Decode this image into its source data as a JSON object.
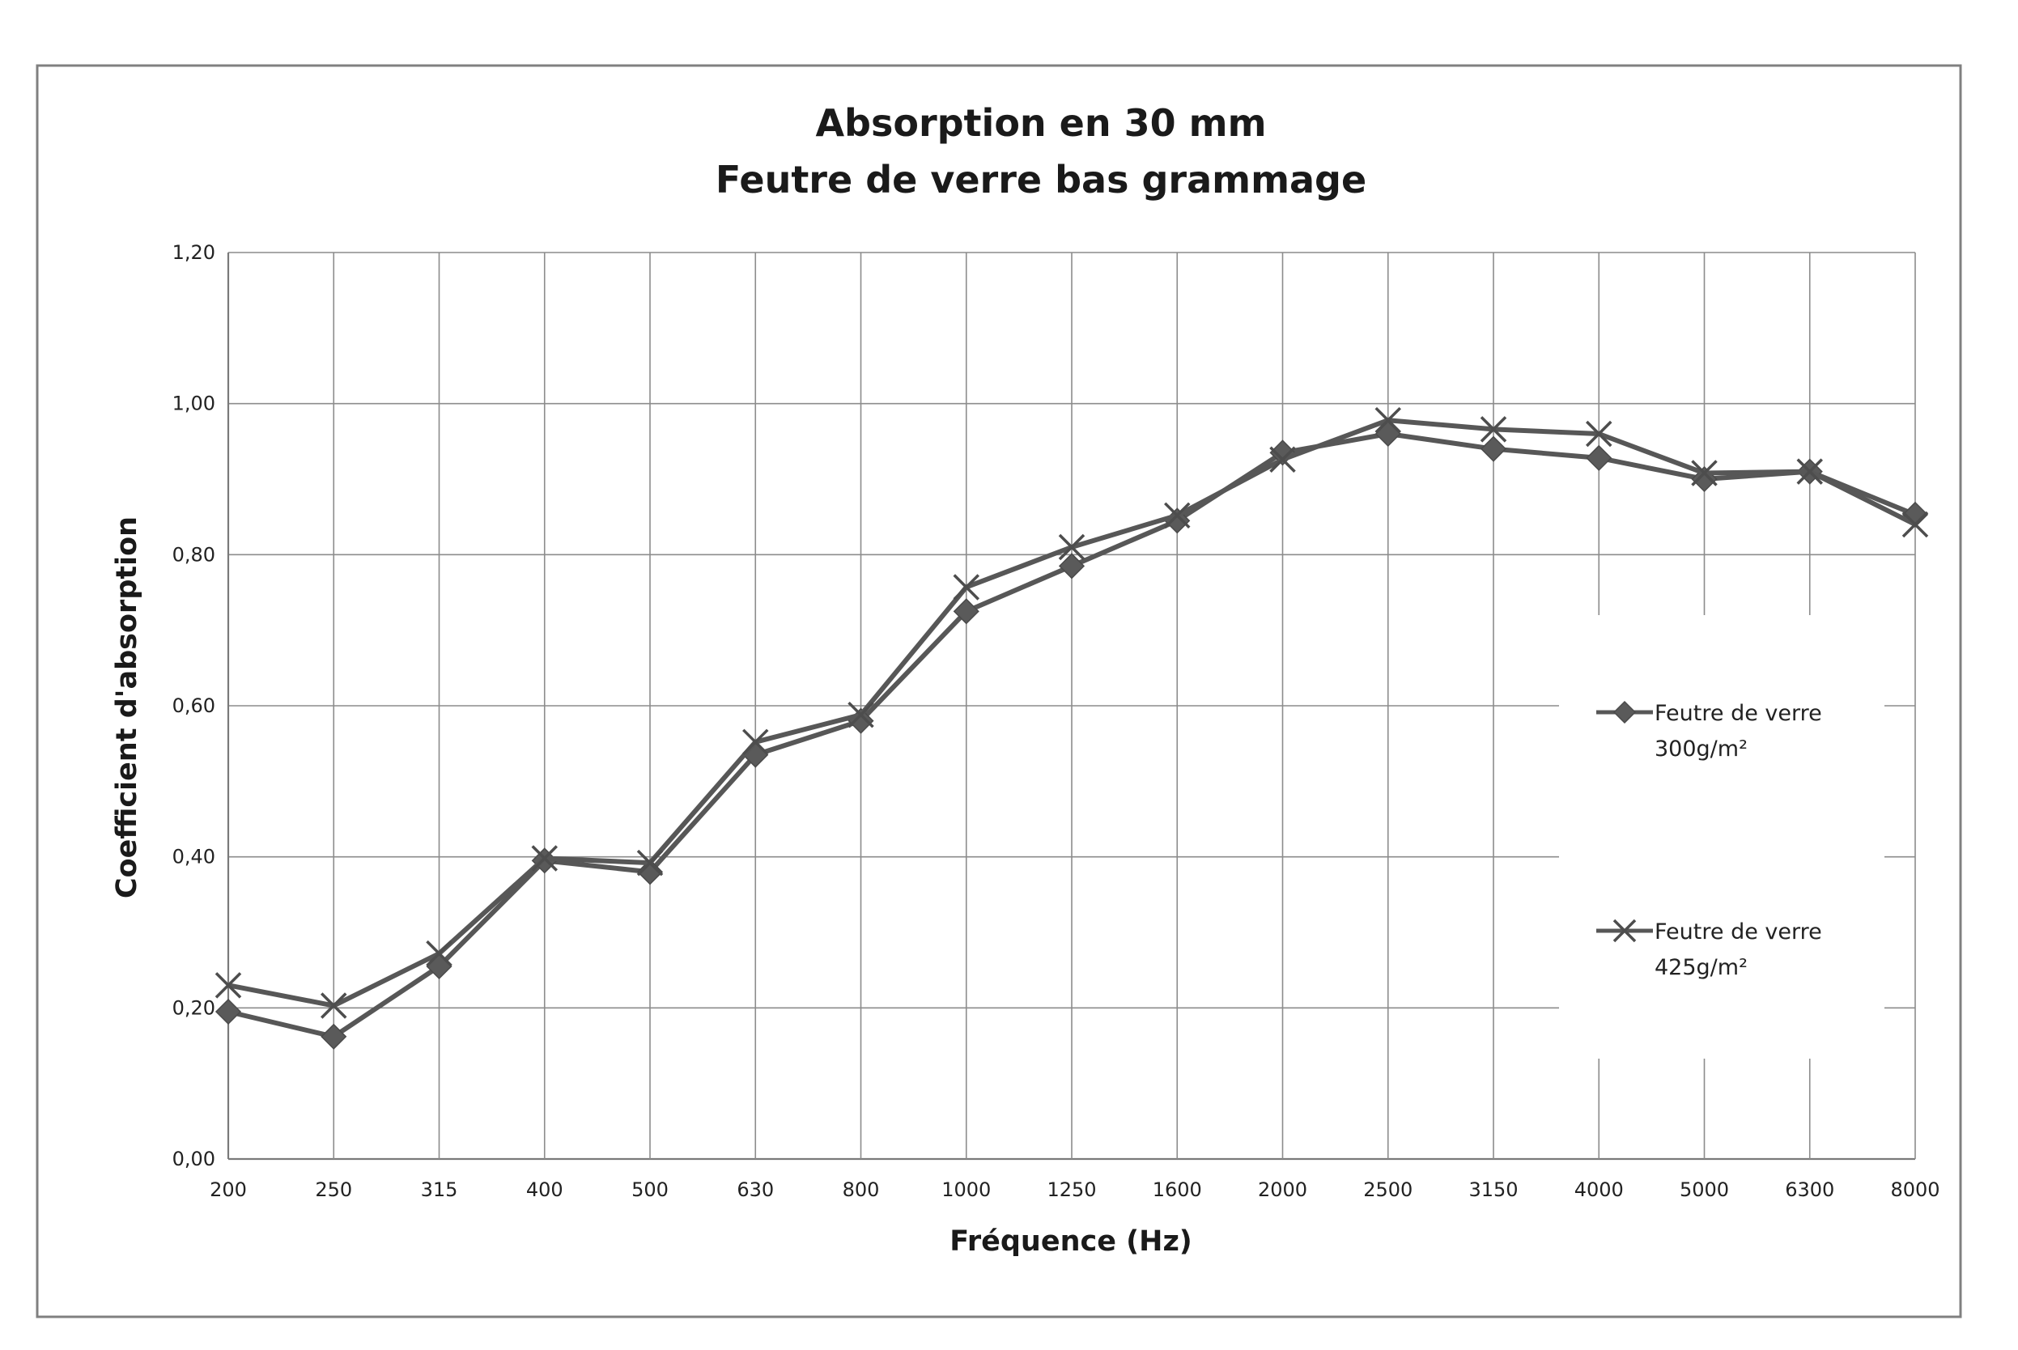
{
  "chart_data": {
    "type": "line",
    "title": [
      "Absorption en 30 mm",
      "Feutre de verre bas grammage"
    ],
    "xlabel": "Fréquence (Hz)",
    "ylabel": "Coefficient d'absorption",
    "categories": [
      "200",
      "250",
      "315",
      "400",
      "500",
      "630",
      "800",
      "1000",
      "1250",
      "1600",
      "2000",
      "2500",
      "3150",
      "4000",
      "5000",
      "6300",
      "8000"
    ],
    "ylim": [
      0,
      1.2
    ],
    "yticks": [
      "0,00",
      "0,20",
      "0,40",
      "0,60",
      "0,80",
      "1,00",
      "1,20"
    ],
    "ytick_values": [
      0,
      0.2,
      0.4,
      0.6,
      0.8,
      1.0,
      1.2
    ],
    "grid": true,
    "legend_position": "right",
    "series": [
      {
        "name": "Feutre de verre 300g/m²",
        "legend_lines": [
          "Feutre de verre",
          "300g/m²"
        ],
        "marker": "diamond",
        "values": [
          0.195,
          0.162,
          0.255,
          0.395,
          0.38,
          0.535,
          0.58,
          0.725,
          0.785,
          0.845,
          0.935,
          0.96,
          0.94,
          0.928,
          0.9,
          0.91,
          0.853
        ]
      },
      {
        "name": "Feutre de verre 425g/m²",
        "legend_lines": [
          "Feutre de verre",
          "425g/m²"
        ],
        "marker": "x",
        "values": [
          0.23,
          0.203,
          0.272,
          0.398,
          0.392,
          0.552,
          0.588,
          0.757,
          0.81,
          0.852,
          0.926,
          0.978,
          0.966,
          0.96,
          0.908,
          0.91,
          0.84
        ]
      }
    ]
  },
  "colors": {
    "series_line": "#575757",
    "grid": "#8c8c8c",
    "frame": "#808080"
  }
}
